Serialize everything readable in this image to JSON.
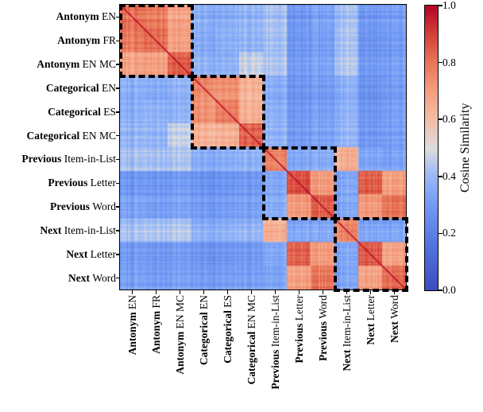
{
  "chart_data": {
    "type": "heatmap",
    "title": "",
    "description": "Pairwise cosine similarity matrix between task vectors, grouped into four task families marked by dashed boxes",
    "axes_symmetric": true,
    "categories": [
      {
        "bold": "Antonym",
        "rest": "EN"
      },
      {
        "bold": "Antonym",
        "rest": "FR"
      },
      {
        "bold": "Antonym",
        "rest": "EN MC"
      },
      {
        "bold": "Categorical",
        "rest": "EN"
      },
      {
        "bold": "Categorical",
        "rest": "ES"
      },
      {
        "bold": "Categorical",
        "rest": "EN MC"
      },
      {
        "bold": "Previous",
        "rest": "Item-in-List"
      },
      {
        "bold": "Previous",
        "rest": "Letter"
      },
      {
        "bold": "Previous",
        "rest": "Word"
      },
      {
        "bold": "Next",
        "rest": "Item-in-List"
      },
      {
        "bold": "Next",
        "rest": "Letter"
      },
      {
        "bold": "Next",
        "rest": "Word"
      }
    ],
    "block_matrix": [
      [
        0.8,
        0.78,
        0.68,
        0.36,
        0.35,
        0.38,
        0.42,
        0.28,
        0.31,
        0.42,
        0.29,
        0.31
      ],
      [
        0.78,
        0.81,
        0.69,
        0.35,
        0.36,
        0.38,
        0.42,
        0.28,
        0.3,
        0.43,
        0.28,
        0.3
      ],
      [
        0.68,
        0.69,
        0.85,
        0.38,
        0.37,
        0.47,
        0.44,
        0.3,
        0.32,
        0.45,
        0.3,
        0.32
      ],
      [
        0.36,
        0.35,
        0.38,
        0.76,
        0.73,
        0.64,
        0.36,
        0.27,
        0.29,
        0.37,
        0.27,
        0.3
      ],
      [
        0.35,
        0.36,
        0.37,
        0.73,
        0.77,
        0.64,
        0.36,
        0.27,
        0.29,
        0.37,
        0.27,
        0.3
      ],
      [
        0.38,
        0.38,
        0.47,
        0.64,
        0.64,
        0.84,
        0.38,
        0.29,
        0.31,
        0.39,
        0.29,
        0.31
      ],
      [
        0.42,
        0.42,
        0.44,
        0.36,
        0.36,
        0.38,
        0.77,
        0.34,
        0.35,
        0.66,
        0.34,
        0.33
      ],
      [
        0.28,
        0.28,
        0.3,
        0.27,
        0.27,
        0.29,
        0.34,
        0.86,
        0.69,
        0.34,
        0.84,
        0.69
      ],
      [
        0.31,
        0.3,
        0.32,
        0.29,
        0.29,
        0.31,
        0.35,
        0.69,
        0.82,
        0.34,
        0.7,
        0.79
      ],
      [
        0.42,
        0.43,
        0.45,
        0.37,
        0.37,
        0.39,
        0.66,
        0.34,
        0.34,
        0.78,
        0.34,
        0.34
      ],
      [
        0.29,
        0.28,
        0.3,
        0.27,
        0.27,
        0.29,
        0.34,
        0.84,
        0.7,
        0.34,
        0.86,
        0.69
      ],
      [
        0.31,
        0.3,
        0.32,
        0.3,
        0.3,
        0.31,
        0.33,
        0.69,
        0.79,
        0.34,
        0.69,
        0.82
      ]
    ],
    "diagonal_value": 1.0,
    "value_range": [
      0.0,
      1.0
    ],
    "group_boxes": [
      [
        0,
        3
      ],
      [
        3,
        6
      ],
      [
        6,
        9
      ],
      [
        9,
        12
      ]
    ],
    "colormap": "coolwarm",
    "colormap_anchors": [
      [
        0.0,
        59,
        76,
        192
      ],
      [
        0.15,
        81,
        113,
        221
      ],
      [
        0.3,
        114,
        155,
        245
      ],
      [
        0.4,
        152,
        185,
        248
      ],
      [
        0.5,
        221,
        221,
        221
      ],
      [
        0.6,
        245,
        190,
        165
      ],
      [
        0.7,
        244,
        158,
        127
      ],
      [
        0.8,
        233,
        118,
        88
      ],
      [
        0.9,
        212,
        65,
        58
      ],
      [
        1.0,
        180,
        4,
        38
      ]
    ],
    "colorbar_label": "Cosine Similarity",
    "colorbar_ticks": [
      {
        "value": 0.0,
        "label": "0.0"
      },
      {
        "value": 0.2,
        "label": "0.2"
      },
      {
        "value": 0.4,
        "label": "0.4"
      },
      {
        "value": 0.6,
        "label": "0.6"
      },
      {
        "value": 0.8,
        "label": "0.8"
      },
      {
        "value": 1.0,
        "label": "1.0"
      }
    ],
    "colors": {
      "frame": "#000000",
      "group_box_border": "#000000",
      "background": "#ffffff",
      "diagonal_line": "#b40426",
      "low_color": "#3b4cc0",
      "high_color": "#b40426"
    }
  }
}
